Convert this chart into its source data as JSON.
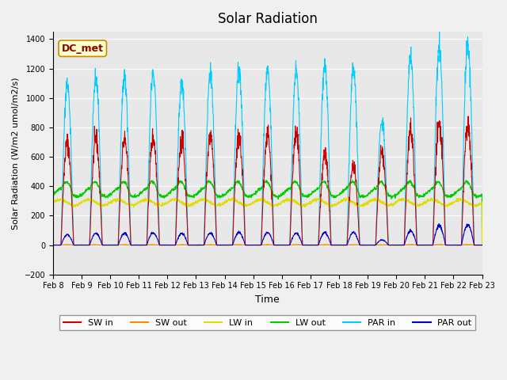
{
  "title": "Solar Radiation",
  "ylabel": "Solar Radiation (W/m2 umol/m2/s)",
  "xlabel": "Time",
  "ylim": [
    -200,
    1450
  ],
  "annotation": "DC_met",
  "x_tick_labels": [
    "Feb 8",
    "Feb 9",
    "Feb 10",
    "Feb 11",
    "Feb 12",
    "Feb 13",
    "Feb 14",
    "Feb 15",
    "Feb 16",
    "Feb 17",
    "Feb 18",
    "Feb 19",
    "Feb 20",
    "Feb 21",
    "Feb 22",
    "Feb 23"
  ],
  "series": {
    "SW_in": {
      "color": "#cc0000",
      "label": "SW in"
    },
    "SW_out": {
      "color": "#ff8800",
      "label": "SW out"
    },
    "LW_in": {
      "color": "#dddd00",
      "label": "LW in"
    },
    "LW_out": {
      "color": "#00cc00",
      "label": "LW out"
    },
    "PAR_in": {
      "color": "#00ccff",
      "label": "PAR in"
    },
    "PAR_out": {
      "color": "#0000cc",
      "label": "PAR out"
    }
  },
  "background_color": "#e8e8e8",
  "plot_background": "#e8e8e8",
  "n_days": 15,
  "sw_in_base": [
    700,
    720,
    720,
    730,
    720,
    750,
    740,
    750,
    750,
    620,
    540,
    630,
    790,
    820,
    820
  ],
  "par_in_base": [
    1090,
    1150,
    1140,
    1170,
    1110,
    1170,
    1200,
    1200,
    1185,
    1225,
    1215,
    850,
    1290,
    1350,
    1390
  ],
  "par_out_base": [
    70,
    80,
    80,
    85,
    80,
    80,
    85,
    85,
    80,
    85,
    85,
    35,
    95,
    130,
    140
  ]
}
